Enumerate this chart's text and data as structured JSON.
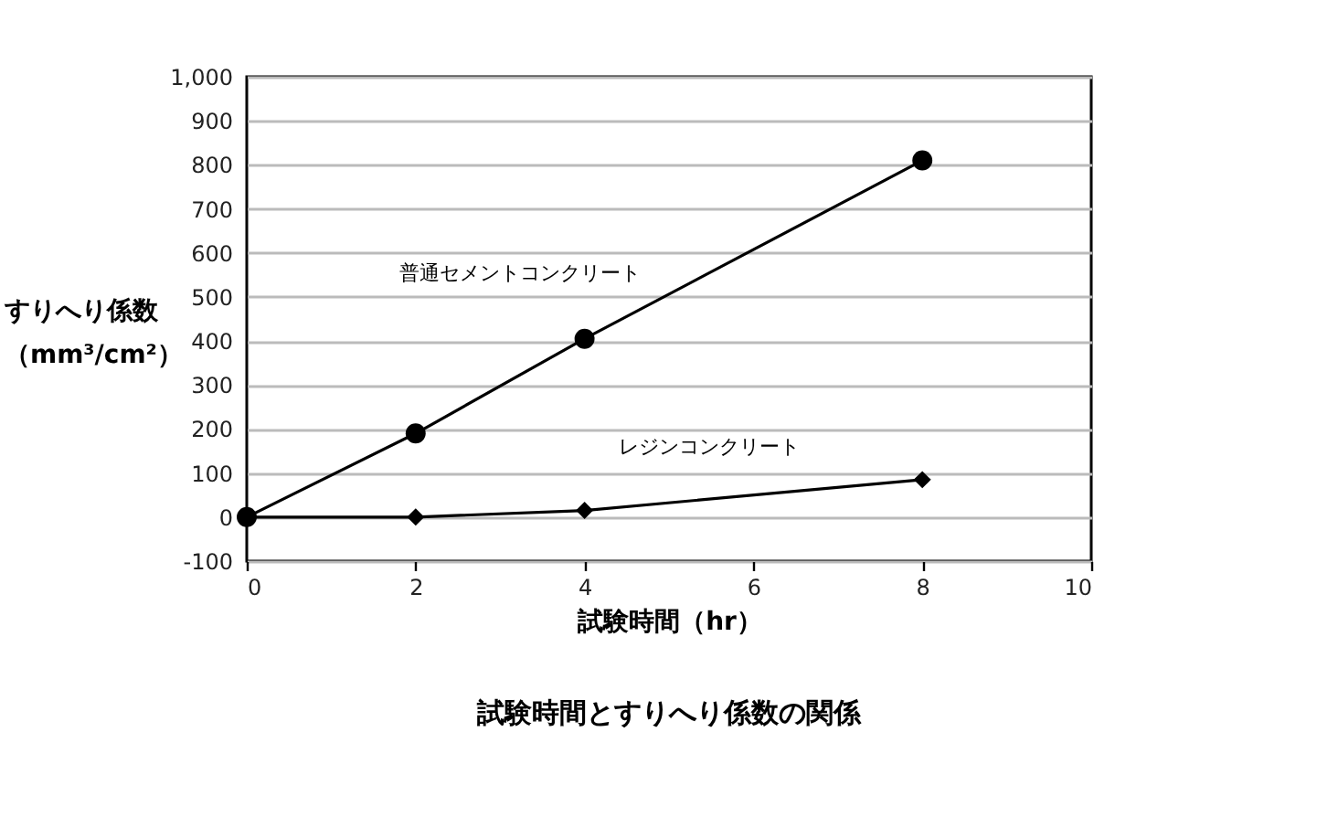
{
  "chart_data": {
    "type": "line",
    "title": "試験時間とすりへり係数の関係",
    "xlabel": "試験時間（hr）",
    "ylabel": "すりへり係数（mm³/cm²）",
    "x": [
      0,
      2,
      4,
      8
    ],
    "series": [
      {
        "name": "普通セメントコンクリート",
        "color": "#000000",
        "marker": "circle",
        "values": [
          0,
          190,
          405,
          810
        ]
      },
      {
        "name": "レジンコンクリート",
        "color": "#000000",
        "marker": "diamond",
        "values": [
          0,
          0,
          15,
          85
        ]
      }
    ],
    "xlim": [
      0,
      10
    ],
    "xticks": [
      0,
      2,
      4,
      6,
      8,
      10
    ],
    "ylim": [
      -100,
      1000
    ],
    "yticks": [
      -100,
      0,
      100,
      200,
      300,
      400,
      500,
      600,
      700,
      800,
      900,
      {
        "value": 1000,
        "label": "1,000"
      }
    ],
    "grid": "y",
    "line_style": "solid"
  }
}
